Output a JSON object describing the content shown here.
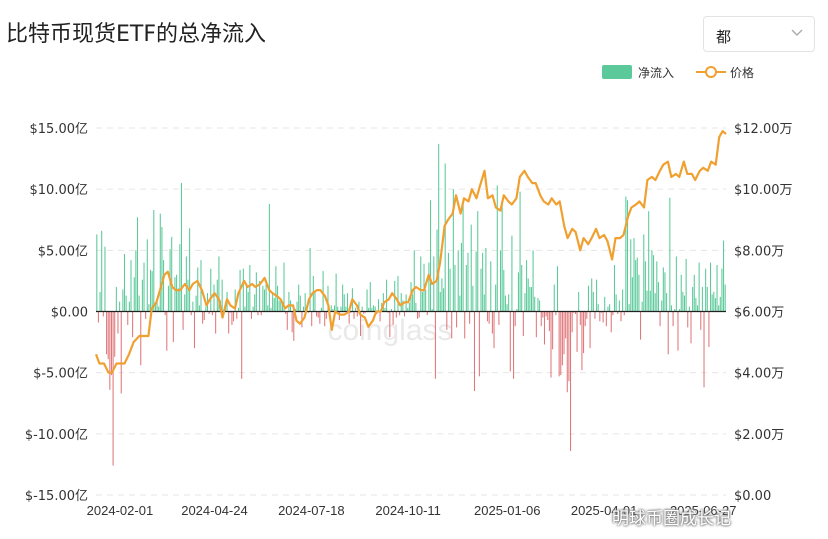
{
  "title": "比特币现货ETF的总净流入",
  "range_selector": {
    "selected": "都"
  },
  "watermark": "coinglass",
  "credit": "明球币圈成长记",
  "chart_data": {
    "type": "bar+line",
    "title": "比特币现货ETF的总净流入",
    "x_ticks": [
      "2024-02-01",
      "2024-04-24",
      "2024-07-18",
      "2024-10-11",
      "2025-01-06",
      "2025-04-01",
      "2025-06-27"
    ],
    "x_range": [
      "2024-01-11",
      "2025-07-17"
    ],
    "left_axis": {
      "ticks": [
        "$15.00亿",
        "$10.00亿",
        "$5.00亿",
        "$0.00",
        "$-5.00亿",
        "$-10.00亿",
        "$-15.00亿"
      ],
      "values": [
        15,
        10,
        5,
        0,
        -5,
        -10,
        -15
      ],
      "range": [
        -15,
        15
      ],
      "unit": "亿 USD"
    },
    "right_axis": {
      "ticks": [
        "$12.00万",
        "$10.00万",
        "$8.00万",
        "$6.00万",
        "$4.00万",
        "$2.00万",
        "$0.00"
      ],
      "values": [
        12,
        10,
        8,
        6,
        4,
        2,
        0
      ],
      "range": [
        0,
        12
      ],
      "unit": "万 USD"
    },
    "grid": true,
    "legend": {
      "position": "top-right"
    },
    "colors": {
      "inflow": "#5cc99a",
      "outflow": "#e0787b",
      "price": "#f0a030"
    },
    "series": [
      {
        "name": "净流入",
        "type": "bar",
        "values": [
          6.3,
          -0.9,
          1.6,
          6.6,
          -0.4,
          5.3,
          -3.5,
          -3.9,
          -6.4,
          -5.2,
          -12.6,
          -3.7,
          2.0,
          -1.8,
          0.8,
          -6.7,
          1.8,
          4.7,
          1.3,
          -1.1,
          0.8,
          4.2,
          -2.1,
          2.8,
          5.0,
          7.7,
          1.3,
          -4.4,
          2.6,
          4.0,
          -0.6,
          5.9,
          0.6,
          3.4,
          3.3,
          8.3,
          0.6,
          1.0,
          0.4,
          8.0,
          6.9,
          4.2,
          -0.3,
          -3.2,
          2.1,
          5.1,
          6.1,
          -2.5,
          2.8,
          3.0,
          1.9,
          5.5,
          10.5,
          -1.5,
          1.4,
          4.5,
          2.6,
          6.8,
          -0.3,
          0.8,
          -3.0,
          1.3,
          3.6,
          0.5,
          4.2,
          -1.0,
          -0.7,
          0.4,
          1.5,
          -0.2,
          3.5,
          -0.3,
          2.2,
          -1.8,
          2.6,
          4.5,
          0.9,
          2.6,
          -0.2,
          0.4,
          1.6,
          -1.8,
          -0.1,
          -1.1,
          -0.8,
          1.8,
          -0.6,
          0.3,
          3.4,
          -5.5,
          3.5,
          0.4,
          2.3,
          1.6,
          3.8,
          -0.6,
          0.4,
          1.4,
          3.2,
          -0.3,
          2.5,
          -0.3,
          2.1,
          1.8,
          2.6,
          0.5,
          8.8,
          0.3,
          1.5,
          1.1,
          3.7,
          2.1,
          0.9,
          0.9,
          0.8,
          4.0,
          -0.2,
          -1.5,
          1.6,
          0.9,
          -1.7,
          -2.4,
          0.2,
          0.8,
          2.2,
          1.3,
          -1.3,
          0.4,
          1.5,
          0.2,
          -0.1,
          5.2,
          -1.2,
          2.9,
          1.6,
          -0.4,
          -0.5,
          -1.0,
          0.3,
          3.3,
          -1.2,
          -0.6,
          2.1,
          -0.1,
          0.5,
          0.2,
          0.5,
          3.1,
          0.4,
          -0.7,
          0.4,
          2.2,
          1.4,
          0.4,
          1.5,
          -1.0,
          -0.1,
          1.9,
          -0.6,
          0.3,
          -0.4,
          0.8,
          -2.0,
          0.4,
          -0.2,
          -0.1,
          1.8,
          0.3,
          2.4,
          0.3,
          0.5,
          0.4,
          -0.2,
          1.0,
          -0.8,
          0.7,
          1.5,
          0.3,
          2.6,
          -0.1,
          -2.1,
          0.2,
          -1.1,
          2.5,
          -0.5,
          2.9,
          -0.3,
          1.5,
          0.9,
          -0.4,
          1.4,
          0.3,
          0.7,
          2.4,
          1.4,
          5.0,
          0.7,
          -0.6,
          -0.5,
          4.5,
          1.6,
          3.9,
          1.8,
          -0.3,
          4.0,
          9.1,
          0.2,
          4.5,
          -5.5,
          6.7,
          13.7,
          1.6,
          2.7,
          1.9,
          12.1,
          -1.5,
          4.8,
          3.5,
          -2.2,
          10.0,
          3.8,
          -1.3,
          5.0,
          1.3,
          5.6,
          9.2,
          -2.2,
          3.8,
          4.8,
          -1.0,
          7.1,
          2.1,
          -6.5,
          4.9,
          8.2,
          -5.3,
          3.5,
          4.8,
          1.4,
          5.2,
          -0.8,
          -1.0,
          4.1,
          -1.8,
          -3.0,
          2.2,
          10.3,
          -1.1,
          5.0,
          9.0,
          3.4,
          1.3,
          0.6,
          1.4,
          -4.9,
          6.2,
          -5.5,
          -1.2,
          0.2,
          3.2,
          9.8,
          3.8,
          -2.0,
          1.5,
          4.2,
          2.7,
          2.0,
          2.0,
          5.0,
          1.2,
          -2.1,
          1.1,
          0.9,
          -1.2,
          -0.5,
          -2.7,
          -0.4,
          -0.7,
          -1.6,
          -5.4,
          -3.1,
          2.2,
          -0.3,
          3.7,
          -5.3,
          -5.2,
          -4.4,
          -3.5,
          -2.2,
          -6.6,
          -5.7,
          -11.4,
          -1.7,
          -0.1,
          -0.2,
          -3.3,
          1.6,
          -1.1,
          -4.8,
          -3.4,
          -1.2,
          -0.6,
          2.1,
          -3.0,
          2.7,
          1.6,
          -0.6,
          2.6,
          0.6,
          -0.8,
          -0.1,
          -0.9,
          1.2,
          -1.2,
          0.4,
          0.6,
          -1.7,
          -0.3,
          3.8,
          1.4,
          -0.2,
          0.9,
          -0.8,
          1.8,
          -0.3,
          9.4,
          9.1,
          0.6,
          5.9,
          2.8,
          6.0,
          4.2,
          4.4,
          3.0,
          -2.3,
          0.8,
          6.3,
          4.1,
          1.7,
          8.2,
          1.7,
          5.0,
          4.6,
          1.5,
          4.1,
          2.4,
          -1.2,
          0.9,
          3.6,
          3.2,
          1.5,
          -3.5,
          9.3,
          0.5,
          -1.2,
          0.2,
          4.5,
          -3.2,
          0.2,
          3.0,
          1.6,
          1.3,
          4.3,
          -1.3,
          0.4,
          -2.6,
          2.0,
          3.0,
          1.1,
          0.5,
          4.0,
          -1.5,
          2.0,
          -6.2,
          3.5,
          2.0,
          -2.9,
          4.0,
          1.4,
          1.6,
          1.1,
          3.8,
          0.5,
          1.2,
          3.5,
          5.8,
          2.2
        ]
      },
      {
        "name": "价格",
        "type": "line",
        "points": [
          [
            "2024-01-11",
            4.6
          ],
          [
            "2024-01-14",
            4.3
          ],
          [
            "2024-01-18",
            4.3
          ],
          [
            "2024-01-22",
            4.0
          ],
          [
            "2024-01-25",
            4.0
          ],
          [
            "2024-01-29",
            4.3
          ],
          [
            "2024-02-01",
            4.3
          ],
          [
            "2024-02-05",
            4.3
          ],
          [
            "2024-02-09",
            4.6
          ],
          [
            "2024-02-13",
            5.0
          ],
          [
            "2024-02-18",
            5.2
          ],
          [
            "2024-02-22",
            5.2
          ],
          [
            "2024-02-26",
            5.2
          ],
          [
            "2024-02-29",
            6.1
          ],
          [
            "2024-03-04",
            6.3
          ],
          [
            "2024-03-08",
            6.8
          ],
          [
            "2024-03-11",
            7.2
          ],
          [
            "2024-03-14",
            7.3
          ],
          [
            "2024-03-18",
            6.8
          ],
          [
            "2024-03-21",
            6.7
          ],
          [
            "2024-03-25",
            6.7
          ],
          [
            "2024-03-29",
            6.9
          ],
          [
            "2024-04-02",
            6.7
          ],
          [
            "2024-04-05",
            6.9
          ],
          [
            "2024-04-09",
            7.0
          ],
          [
            "2024-04-13",
            6.7
          ],
          [
            "2024-04-17",
            6.2
          ],
          [
            "2024-04-20",
            6.4
          ],
          [
            "2024-04-24",
            6.6
          ],
          [
            "2024-04-28",
            6.4
          ],
          [
            "2024-05-01",
            5.8
          ],
          [
            "2024-05-05",
            6.4
          ],
          [
            "2024-05-08",
            6.2
          ],
          [
            "2024-05-12",
            6.1
          ],
          [
            "2024-05-15",
            6.6
          ],
          [
            "2024-05-20",
            7.0
          ],
          [
            "2024-05-23",
            6.8
          ],
          [
            "2024-05-27",
            6.9
          ],
          [
            "2024-05-30",
            6.8
          ],
          [
            "2024-06-03",
            6.9
          ],
          [
            "2024-06-07",
            7.1
          ],
          [
            "2024-06-11",
            6.7
          ],
          [
            "2024-06-14",
            6.6
          ],
          [
            "2024-06-18",
            6.5
          ],
          [
            "2024-06-21",
            6.4
          ],
          [
            "2024-06-25",
            6.1
          ],
          [
            "2024-06-28",
            6.2
          ],
          [
            "2024-07-02",
            6.2
          ],
          [
            "2024-07-05",
            5.7
          ],
          [
            "2024-07-08",
            5.6
          ],
          [
            "2024-07-12",
            5.8
          ],
          [
            "2024-07-16",
            6.4
          ],
          [
            "2024-07-19",
            6.6
          ],
          [
            "2024-07-23",
            6.7
          ],
          [
            "2024-07-26",
            6.7
          ],
          [
            "2024-07-30",
            6.5
          ],
          [
            "2024-08-02",
            6.2
          ],
          [
            "2024-08-05",
            5.4
          ],
          [
            "2024-08-08",
            6.0
          ],
          [
            "2024-08-12",
            5.9
          ],
          [
            "2024-08-16",
            5.9
          ],
          [
            "2024-08-20",
            6.0
          ],
          [
            "2024-08-23",
            6.4
          ],
          [
            "2024-08-27",
            6.2
          ],
          [
            "2024-08-30",
            5.9
          ],
          [
            "2024-09-03",
            5.8
          ],
          [
            "2024-09-06",
            5.5
          ],
          [
            "2024-09-10",
            5.7
          ],
          [
            "2024-09-13",
            6.0
          ],
          [
            "2024-09-17",
            6.0
          ],
          [
            "2024-09-20",
            6.3
          ],
          [
            "2024-09-24",
            6.4
          ],
          [
            "2024-09-27",
            6.6
          ],
          [
            "2024-10-01",
            6.4
          ],
          [
            "2024-10-04",
            6.2
          ],
          [
            "2024-10-08",
            6.3
          ],
          [
            "2024-10-11",
            6.3
          ],
          [
            "2024-10-15",
            6.7
          ],
          [
            "2024-10-18",
            6.8
          ],
          [
            "2024-10-22",
            6.7
          ],
          [
            "2024-10-25",
            6.7
          ],
          [
            "2024-10-29",
            7.2
          ],
          [
            "2024-11-01",
            6.9
          ],
          [
            "2024-11-05",
            7.0
          ],
          [
            "2024-11-08",
            7.6
          ],
          [
            "2024-11-12",
            8.8
          ],
          [
            "2024-11-15",
            9.0
          ],
          [
            "2024-11-19",
            9.2
          ],
          [
            "2024-11-22",
            9.8
          ],
          [
            "2024-11-26",
            9.2
          ],
          [
            "2024-11-29",
            9.7
          ],
          [
            "2024-12-03",
            9.6
          ],
          [
            "2024-12-06",
            10.0
          ],
          [
            "2024-12-10",
            9.7
          ],
          [
            "2024-12-13",
            10.1
          ],
          [
            "2024-12-17",
            10.6
          ],
          [
            "2024-12-20",
            9.7
          ],
          [
            "2024-12-24",
            9.8
          ],
          [
            "2024-12-27",
            9.4
          ],
          [
            "2024-12-31",
            9.3
          ],
          [
            "2025-01-03",
            9.8
          ],
          [
            "2025-01-07",
            9.6
          ],
          [
            "2025-01-10",
            9.5
          ],
          [
            "2025-01-14",
            9.7
          ],
          [
            "2025-01-17",
            10.4
          ],
          [
            "2025-01-21",
            10.6
          ],
          [
            "2025-01-24",
            10.4
          ],
          [
            "2025-01-28",
            10.2
          ],
          [
            "2025-01-31",
            10.2
          ],
          [
            "2025-02-04",
            9.8
          ],
          [
            "2025-02-07",
            9.6
          ],
          [
            "2025-02-11",
            9.5
          ],
          [
            "2025-02-14",
            9.7
          ],
          [
            "2025-02-18",
            9.5
          ],
          [
            "2025-02-21",
            9.6
          ],
          [
            "2025-02-25",
            8.8
          ],
          [
            "2025-02-28",
            8.4
          ],
          [
            "2025-03-04",
            8.7
          ],
          [
            "2025-03-07",
            8.6
          ],
          [
            "2025-03-11",
            8.0
          ],
          [
            "2025-03-14",
            8.4
          ],
          [
            "2025-03-18",
            8.2
          ],
          [
            "2025-03-21",
            8.4
          ],
          [
            "2025-03-25",
            8.7
          ],
          [
            "2025-03-28",
            8.4
          ],
          [
            "2025-04-01",
            8.5
          ],
          [
            "2025-04-04",
            8.3
          ],
          [
            "2025-04-08",
            7.7
          ],
          [
            "2025-04-11",
            8.4
          ],
          [
            "2025-04-15",
            8.4
          ],
          [
            "2025-04-18",
            8.5
          ],
          [
            "2025-04-22",
            9.1
          ],
          [
            "2025-04-25",
            9.4
          ],
          [
            "2025-04-29",
            9.5
          ],
          [
            "2025-05-02",
            9.6
          ],
          [
            "2025-05-06",
            9.4
          ],
          [
            "2025-05-09",
            10.3
          ],
          [
            "2025-05-13",
            10.4
          ],
          [
            "2025-05-16",
            10.3
          ],
          [
            "2025-05-20",
            10.6
          ],
          [
            "2025-05-23",
            10.8
          ],
          [
            "2025-05-27",
            10.9
          ],
          [
            "2025-05-30",
            10.4
          ],
          [
            "2025-06-03",
            10.5
          ],
          [
            "2025-06-06",
            10.4
          ],
          [
            "2025-06-10",
            10.9
          ],
          [
            "2025-06-13",
            10.5
          ],
          [
            "2025-06-17",
            10.5
          ],
          [
            "2025-06-20",
            10.3
          ],
          [
            "2025-06-24",
            10.6
          ],
          [
            "2025-06-27",
            10.7
          ],
          [
            "2025-07-01",
            10.6
          ],
          [
            "2025-07-04",
            10.9
          ],
          [
            "2025-07-08",
            10.8
          ],
          [
            "2025-07-11",
            11.7
          ],
          [
            "2025-07-14",
            11.9
          ],
          [
            "2025-07-17",
            11.8
          ]
        ]
      }
    ]
  }
}
